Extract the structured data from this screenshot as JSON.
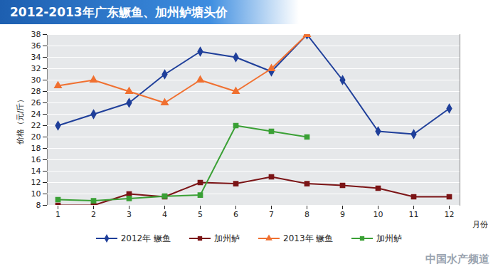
{
  "chart_data": {
    "type": "line",
    "title": "2012-2013年广东鳜鱼、加州鲈塘头价",
    "y_label": "价格（元/斤）",
    "x_label": "月份",
    "categories": [
      "1",
      "2",
      "3",
      "4",
      "5",
      "6",
      "7",
      "8",
      "9",
      "10",
      "11",
      "12"
    ],
    "series": [
      {
        "name": "2012年 鳜鱼",
        "color": "#1f3f9a",
        "marker": "diamond",
        "values": [
          22,
          24,
          26,
          31,
          35,
          34,
          31.5,
          38,
          30,
          21,
          20.5,
          25
        ]
      },
      {
        "name": "加州鲈",
        "color": "#7b1416",
        "marker": "square",
        "values": [
          8,
          8,
          10,
          9.5,
          12,
          11.8,
          13,
          11.8,
          11.5,
          11,
          9.5,
          9.5
        ]
      },
      {
        "name": "2013年 鳜鱼",
        "color": "#f07030",
        "marker": "triangle",
        "values": [
          29,
          30,
          28,
          26,
          30,
          28,
          32,
          38,
          null,
          null,
          null,
          null
        ]
      },
      {
        "name": "加州鲈",
        "color": "#3aa035",
        "marker": "square",
        "values": [
          9,
          8.8,
          9.2,
          9.6,
          9.8,
          22,
          21,
          20,
          null,
          null,
          null,
          null
        ]
      }
    ],
    "ylim": [
      8,
      38
    ],
    "yticks": [
      8,
      10,
      12,
      14,
      16,
      18,
      20,
      22,
      24,
      26,
      28,
      30,
      32,
      34,
      36,
      38
    ],
    "grid": true,
    "legend": "bottom",
    "annotations": [
      "中国水产频道"
    ]
  }
}
